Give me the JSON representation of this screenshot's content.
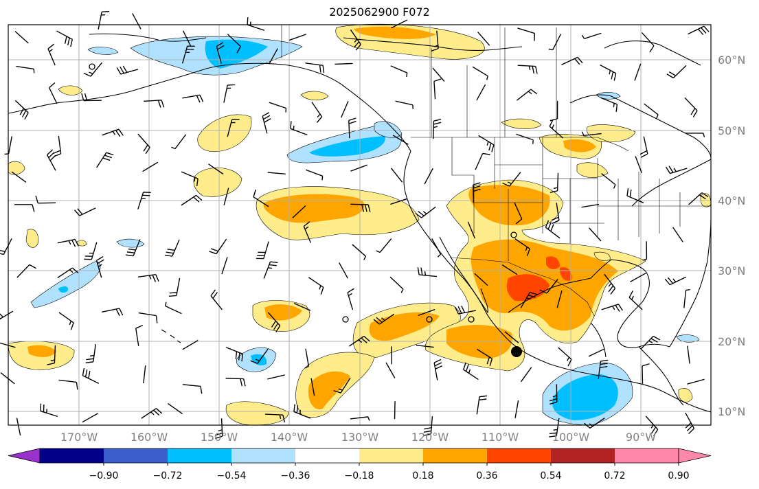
{
  "title": "2025062900 F072",
  "axes": {
    "lon_ticks": [
      "170°W",
      "160°W",
      "150°W",
      "140°W",
      "130°W",
      "120°W",
      "110°W",
      "100°W",
      "90°W"
    ],
    "lat_ticks": [
      "60°N",
      "50°N",
      "40°N",
      "30°N",
      "20°N",
      "10°N"
    ]
  },
  "colorbar": {
    "labels": [
      "−0.90",
      "−0.72",
      "−0.54",
      "−0.36",
      "−0.18",
      "0.18",
      "0.36",
      "0.54",
      "0.72",
      "0.90"
    ],
    "colors": [
      "#9932cc",
      "#00008b",
      "#3a5fcd",
      "#00bfff",
      "#b0e2ff",
      "#ffffff",
      "#ffec8b",
      "#ffa500",
      "#ff4500",
      "#b22222",
      "#ff88aa"
    ]
  }
}
